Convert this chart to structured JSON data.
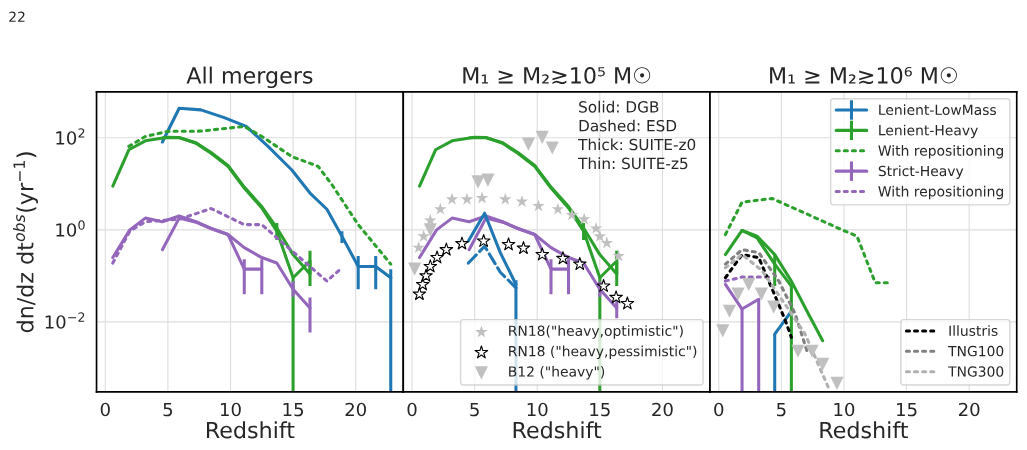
{
  "chart_data": [
    {
      "type": "line",
      "title": "All mergers",
      "xlabel": "Redshift",
      "ylabel": "dn/dz dt$^{obs}$(yr$^{−1}$)",
      "annotations": [
        "22"
      ],
      "xlim": [
        -0.7,
        23.8
      ],
      "xticks": [
        0,
        5,
        10,
        15,
        20
      ],
      "ylim": [
        0.0003,
        1000
      ],
      "log": "y",
      "yticks": [
        {
          "value": 0.01,
          "label": "10$^{−2}$"
        },
        {
          "value": 1,
          "label": "10$^{0}$"
        },
        {
          "value": 100,
          "label": "10$^{2}$"
        }
      ],
      "grid": true,
      "series": [
        {
          "color": "#1f77b4",
          "x": [
            4.56,
            5.9,
            7.64,
            9.5,
            11.26,
            13.0,
            14.9,
            16.35,
            17.7,
            18.9,
            20.2,
            21.6,
            22.8
          ],
          "values": [
            81,
            440,
            405,
            275,
            177,
            65,
            20,
            6.3,
            2.8,
            0.73,
            0.16,
            0.16,
            0.091
          ],
          "errors": [
            null,
            null,
            null,
            null,
            null,
            null,
            null,
            null,
            null,
            [
              0.52,
              0.93
            ],
            [
              0.051,
              0.27
            ],
            [
              0.051,
              0.27
            ],
            [
              0.0003,
              0.14
            ]
          ]
        },
        {
          "color": "#2ca02c",
          "x": [
            0.6,
            1.88,
            3.2,
            5.0,
            5.9,
            7.24,
            8.45,
            9.8,
            11.1,
            12.5,
            13.7,
            15.0,
            16.35
          ],
          "values": [
            8.9,
            55,
            86,
            103,
            102,
            76,
            46,
            24,
            8.1,
            3.0,
            0.94,
            0.091,
            0.21
          ],
          "errors": [
            null,
            null,
            null,
            null,
            null,
            null,
            null,
            null,
            null,
            null,
            null,
            [
              0.0003,
              0.091
            ],
            [
              0.11,
              0.35
            ]
          ]
        },
        {
          "color": "#2ca02c",
          "x": [
            4.6,
            5.9,
            7.24,
            8.45,
            9.8,
            11.1,
            12.5,
            13.7,
            15.0,
            16.35
          ],
          "values": [
            100,
            100,
            78,
            48,
            25,
            8.5,
            3.2,
            1.1,
            0.29,
            0.11
          ],
          "errors": [
            null,
            null,
            null,
            null,
            null,
            null,
            null,
            [
              0.6,
              1.4
            ],
            null,
            [
              0.06,
              0.2
            ]
          ]
        },
        {
          "color": "#2ca02c",
          "line_style": "dotted",
          "x": [
            1.88,
            3.2,
            5.0,
            7.64,
            9.8,
            11.1,
            12.5,
            14.9,
            17.0,
            18.1,
            20.2,
            22.8
          ],
          "values": [
            65,
            107,
            138,
            140,
            162,
            177,
            107,
            39,
            24,
            9.6,
            1.3,
            0.18
          ]
        },
        {
          "color": "#9467bd",
          "x": [
            0.6,
            1.96,
            3.2,
            4.56,
            5.9,
            7.24,
            8.45,
            9.8,
            11.1,
            12.5
          ],
          "values": [
            0.25,
            1.0,
            1.8,
            1.5,
            2.0,
            1.5,
            1.07,
            0.79,
            0.14,
            0.14
          ],
          "errors": [
            null,
            null,
            null,
            null,
            null,
            null,
            null,
            null,
            [
              0.04,
              0.23
            ],
            [
              0.04,
              0.23
            ]
          ]
        },
        {
          "color": "#9467bd",
          "x": [
            4.56,
            5.9,
            7.24,
            8.45,
            9.8,
            11.1,
            12.5,
            13.7,
            15.0,
            16.35
          ],
          "values": [
            0.37,
            1.8,
            1.47,
            1.07,
            0.79,
            0.41,
            0.25,
            0.19,
            0.051,
            0.02
          ],
          "errors": [
            null,
            null,
            null,
            null,
            null,
            null,
            null,
            null,
            [
              0.035,
              0.075
            ],
            [
              0.0059,
              0.034
            ]
          ]
        },
        {
          "color": "#9467bd",
          "line_style": "dotted",
          "x": [
            0.6,
            1.96,
            3.2,
            5.9,
            8.45,
            11.1,
            12.5,
            14.9,
            17.7,
            18.9
          ],
          "values": [
            0.19,
            0.94,
            1.5,
            1.7,
            2.9,
            1.3,
            1.3,
            0.35,
            0.077,
            0.15
          ]
        }
      ]
    },
    {
      "type": "line",
      "title": "M₁ ≥ M₂≳10⁵ M☉",
      "xlabel": "Redshift",
      "annotations": [
        "Solid: DGB",
        "Dashed: ESD",
        "Thick: SUITE-z0",
        "Thin: SUITE-z5"
      ],
      "xlim": [
        -0.7,
        23.8
      ],
      "xticks": [
        0,
        5,
        10,
        15,
        20
      ],
      "ylim": [
        0.0003,
        1000
      ],
      "log": "y",
      "yticks": [
        {
          "value": 0.01,
          "label": null
        },
        {
          "value": 1,
          "label": null
        },
        {
          "value": 100,
          "label": null
        }
      ],
      "grid": true,
      "tick_labels": "x",
      "legend": "bottom right",
      "series": [
        {
          "type": "scatter",
          "marker": "star",
          "name": "RN18(\"heavy,optimistic\")",
          "color": "#c0c0c0",
          "x": [
            0.53,
            0.93,
            1.46,
            2.26,
            3.19,
            4.39,
            5.59,
            7.45,
            8.78,
            10.1,
            11.65,
            12.77,
            13.75,
            14.7,
            15.0,
            15.56,
            16.5
          ],
          "values": [
            0.41,
            0.72,
            1.6,
            2.8,
            4.6,
            4.6,
            4.9,
            4.6,
            4.1,
            3.3,
            2.8,
            2.1,
            1.7,
            1.07,
            0.72,
            0.52,
            0.27
          ]
        },
        {
          "type": "scatter",
          "marker": "star",
          "name": "RN18 (\"heavy,pessimistic\")",
          "color": "#ffffff",
          "x": [
            0.59,
            0.85,
            1.12,
            1.46,
            2.0,
            2.74,
            3.99,
            5.72,
            7.71,
            8.9,
            10.4,
            12.05,
            13.4,
            15.3,
            16.3,
            17.2
          ],
          "values": [
            0.04,
            0.065,
            0.1,
            0.16,
            0.25,
            0.37,
            0.5,
            0.57,
            0.48,
            0.4,
            0.29,
            0.24,
            0.18,
            0.06,
            0.034,
            0.025
          ]
        },
        {
          "type": "scatter",
          "marker": "triangle",
          "name": "B12 (\"heavy\")",
          "color": "#c0c0c0",
          "x": [
            0.21,
            1.46,
            5.27,
            6.06,
            9.3,
            10.4,
            11.2
          ],
          "values": [
            0.14,
            1.0,
            11,
            12,
            73,
            102,
            60
          ]
        },
        {
          "color": "#2ca02c",
          "x": [
            0.6,
            1.88,
            3.2,
            5.0,
            5.9,
            7.24,
            8.45,
            9.8,
            11.1,
            12.5,
            13.7,
            15.0,
            16.35
          ],
          "values": [
            8.9,
            55,
            86,
            103,
            102,
            76,
            46,
            24,
            8.1,
            3.0,
            0.94,
            0.091,
            0.21
          ],
          "errors": [
            null,
            null,
            null,
            null,
            null,
            null,
            null,
            null,
            null,
            null,
            null,
            [
              0.0003,
              0.091
            ],
            [
              0.11,
              0.35
            ]
          ]
        },
        {
          "color": "#2ca02c",
          "x": [
            4.6,
            5.9,
            7.24,
            8.45,
            9.8,
            11.1,
            12.5,
            13.7,
            15.0,
            16.35
          ],
          "values": [
            100,
            100,
            78,
            48,
            25,
            8.5,
            3.2,
            1.1,
            0.29,
            0.11
          ],
          "errors": [
            null,
            null,
            null,
            null,
            null,
            null,
            null,
            [
              0.6,
              1.4
            ],
            null,
            [
              0.06,
              0.2
            ]
          ]
        },
        {
          "color": "#9467bd",
          "x": [
            0.6,
            1.96,
            3.2,
            4.56,
            5.9,
            7.24,
            8.45,
            9.8,
            11.1,
            12.5
          ],
          "values": [
            0.25,
            1.0,
            1.8,
            1.5,
            2.0,
            1.5,
            1.07,
            0.79,
            0.14,
            0.14
          ],
          "errors": [
            null,
            null,
            null,
            null,
            null,
            null,
            null,
            null,
            [
              0.04,
              0.23
            ],
            [
              0.04,
              0.23
            ]
          ]
        },
        {
          "color": "#9467bd",
          "x": [
            4.56,
            5.9,
            7.24,
            8.45,
            9.8,
            11.1,
            12.5,
            13.7,
            15.0,
            16.35
          ],
          "values": [
            0.37,
            1.8,
            1.47,
            1.07,
            0.79,
            0.41,
            0.25,
            0.19,
            0.051,
            0.02
          ],
          "errors": [
            null,
            null,
            null,
            null,
            null,
            null,
            null,
            null,
            [
              0.035,
              0.075
            ],
            [
              0.012,
              0.028
            ]
          ]
        },
        {
          "color": "#1f77b4",
          "x": [
            4.5,
            5.8,
            7.05,
            8.3
          ],
          "values": [
            0.57,
            2.3,
            0.32,
            0.065
          ],
          "errors": [
            null,
            null,
            null,
            [
              0.0003,
              0.08
            ]
          ]
        },
        {
          "color": "#1f77b4",
          "line_style": "dashed",
          "x": [
            4.5,
            5.8,
            7.05,
            8.3
          ],
          "values": [
            0.19,
            0.44,
            0.12,
            0.055
          ]
        }
      ]
    },
    {
      "type": "line",
      "title": "M₁ ≥ M₂≳10⁶ M☉",
      "xlabel": "Redshift",
      "xlim": [
        -0.7,
        23.8
      ],
      "xticks": [
        0,
        5,
        10,
        15,
        20
      ],
      "ylim": [
        0.0003,
        1000
      ],
      "log": "y",
      "yticks": [
        {
          "value": 0.01,
          "label": null
        },
        {
          "value": 1,
          "label": null
        },
        {
          "value": 100,
          "label": null
        }
      ],
      "grid": true,
      "tick_labels": "x",
      "legend": [
        "top right",
        "bottom right"
      ],
      "series": [
        {
          "name": "Lenient-LowMass",
          "color": "#1f77b4",
          "x": [
            4.47,
            5.8
          ],
          "values": [
            0.0054,
            0.017
          ],
          "errors": [
            [
              0.0003,
              0.0054
            ],
            null
          ]
        },
        {
          "name": "Lenient-Heavy",
          "color": "#2ca02c",
          "x": [
            0.53,
            1.86,
            3.06,
            4.47,
            5.8
          ],
          "values": [
            0.29,
            0.97,
            0.67,
            0.18,
            0.06
          ],
          "errors": [
            null,
            null,
            null,
            [
              0.06,
              0.3
            ],
            [
              0.0003,
              0.06
            ]
          ]
        },
        {
          "color": "#2ca02c",
          "x": [
            1.86,
            3.06,
            4.47,
            5.8,
            7.05,
            8.3
          ],
          "values": [
            0.97,
            0.73,
            0.29,
            0.077,
            0.017,
            0.0039
          ]
        },
        {
          "name": "With repositioning",
          "color": "#2ca02c",
          "line_style": "dotted",
          "x": [
            0.53,
            1.86,
            4.26,
            6.9,
            9.6,
            11.04,
            12.5,
            13.5
          ],
          "values": [
            0.79,
            4.0,
            4.8,
            2.3,
            1.07,
            0.73,
            0.071,
            0.071
          ]
        },
        {
          "name": "Strict-Heavy",
          "color": "#9467bd",
          "x": [
            0.53,
            1.86,
            3.19
          ],
          "values": [
            0.065,
            0.019,
            0.031
          ],
          "errors": [
            null,
            [
              0.0003,
              0.019
            ],
            [
              0.0003,
              0.031
            ]
          ]
        },
        {
          "name": "With repositioning",
          "color": "#9467bd",
          "line_style": "dotted",
          "x": [
            0.53,
            1.86,
            4.26
          ],
          "values": [
            0.077,
            0.094,
            0.094
          ]
        },
        {
          "type": "scatter",
          "marker": "triangle",
          "color": "#c0c0c0",
          "x": [
            0.32,
            0.85,
            1.54,
            2.39,
            3.4,
            4.39,
            6.33,
            7.45,
            8.3,
            9.44
          ],
          "values": [
            0.0064,
            0.017,
            0.04,
            0.065,
            0.04,
            0.021,
            0.0023,
            0.0023,
            0.0012,
            0.00046
          ]
        },
        {
          "name": "Illustris",
          "color": "#000000",
          "line_style": "dotted",
          "x": [
            0.53,
            1.86,
            3.19,
            4.39,
            5.3,
            5.8
          ],
          "values": [
            0.091,
            0.29,
            0.25,
            0.043,
            0.011,
            0.0046
          ]
        },
        {
          "name": "TNG100",
          "color": "#808080",
          "line_style": "dotted",
          "x": [
            0.53,
            1.86,
            3.19,
            4.8,
            6.1,
            7.05
          ],
          "values": [
            0.18,
            0.37,
            0.32,
            0.077,
            0.015,
            0.0023
          ]
        },
        {
          "name": "TNG300",
          "color": "#b0b0b0",
          "line_style": "dotted",
          "x": [
            0.53,
            1.86,
            3.46,
            5.3,
            6.9,
            8.8
          ],
          "values": [
            0.15,
            0.29,
            0.13,
            0.024,
            0.0054,
            0.00035
          ]
        }
      ]
    }
  ]
}
